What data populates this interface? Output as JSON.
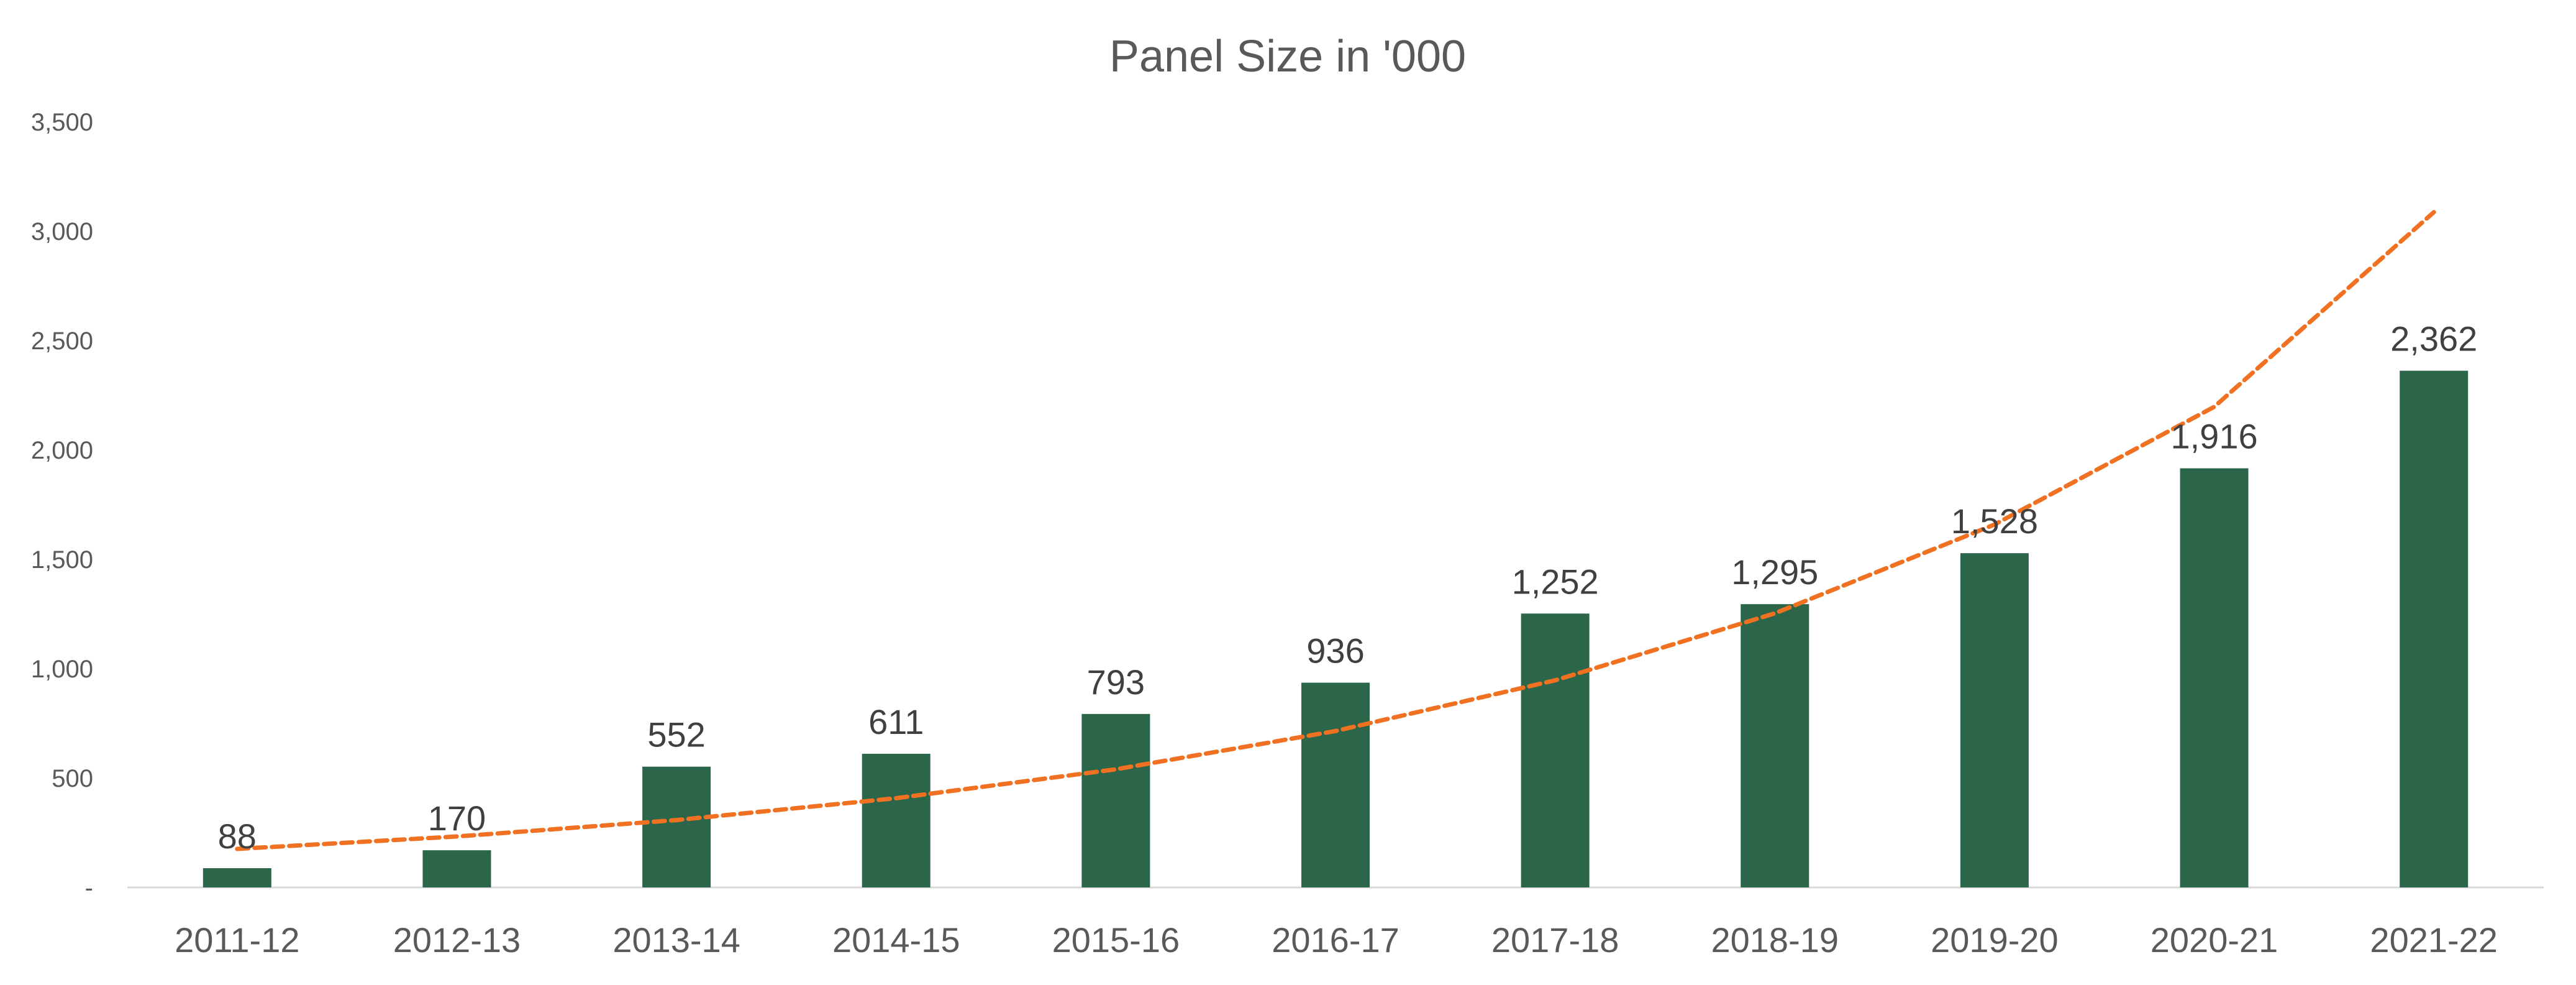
{
  "chart_data": {
    "type": "bar",
    "title": "Panel Size in '000",
    "xlabel": "",
    "ylabel": "",
    "categories": [
      "2011-12",
      "2012-13",
      "2013-14",
      "2014-15",
      "2015-16",
      "2016-17",
      "2017-18",
      "2018-19",
      "2019-20",
      "2020-21",
      "2021-22"
    ],
    "series": [
      {
        "values": [
          88,
          170,
          552,
          611,
          793,
          936,
          1252,
          1295,
          1528,
          1916,
          2362
        ],
        "color": "#2b664b"
      }
    ],
    "data_labels": [
      "88",
      "170",
      "552",
      "611",
      "793",
      "936",
      "1,252",
      "1,295",
      "1,528",
      "1,916",
      "2,362"
    ],
    "ylim": [
      0,
      3500
    ],
    "yticks": [
      0,
      500,
      1000,
      1500,
      2000,
      2500,
      3000,
      3500
    ],
    "ytick_labels": [
      "-",
      "500",
      "1,000",
      "1,500",
      "2,000",
      "2,500",
      "3,000",
      "3,500"
    ],
    "grid": false,
    "legend": "none",
    "trendline": {
      "type": "exponential",
      "style": "dashed",
      "color": "#f07122",
      "values": [
        176,
        233,
        308,
        408,
        540,
        715,
        947,
        1253,
        1659,
        2197,
        3087
      ]
    }
  }
}
